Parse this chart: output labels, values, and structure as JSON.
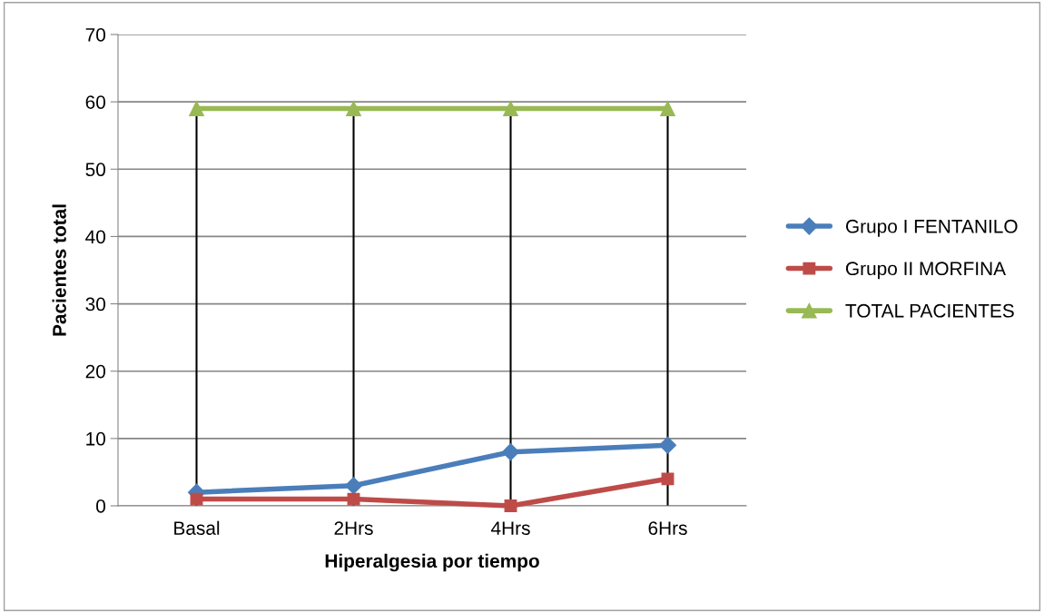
{
  "chart_data": {
    "type": "line",
    "xlabel": "Hiperalgesia por tiempo",
    "ylabel": "Pacientes total",
    "categories": [
      "Basal",
      "2Hrs",
      "4Hrs",
      "6Hrs"
    ],
    "series": [
      {
        "name": "Grupo I FENTANILO",
        "color": "#4a7ebb",
        "marker": "diamond",
        "values": [
          2,
          3,
          8,
          9
        ]
      },
      {
        "name": "Grupo II MORFINA",
        "color": "#be4b48",
        "marker": "square",
        "values": [
          1,
          1,
          0,
          4
        ]
      },
      {
        "name": "TOTAL PACIENTES",
        "color": "#98b954",
        "marker": "triangle",
        "values": [
          59,
          59,
          59,
          59
        ]
      }
    ],
    "ref_lines": [
      {
        "axis": "x",
        "value": "Basal",
        "color": "#000000"
      },
      {
        "axis": "x",
        "value": "2Hrs",
        "color": "#000000"
      },
      {
        "axis": "x",
        "value": "4Hrs",
        "color": "#000000"
      },
      {
        "axis": "x",
        "value": "6Hrs",
        "color": "#000000"
      }
    ],
    "ylim": [
      0,
      70
    ],
    "yticks": [
      0,
      10,
      20,
      30,
      40,
      50,
      60,
      70
    ],
    "grid": "y",
    "legend": "right",
    "line_style": "solid"
  }
}
